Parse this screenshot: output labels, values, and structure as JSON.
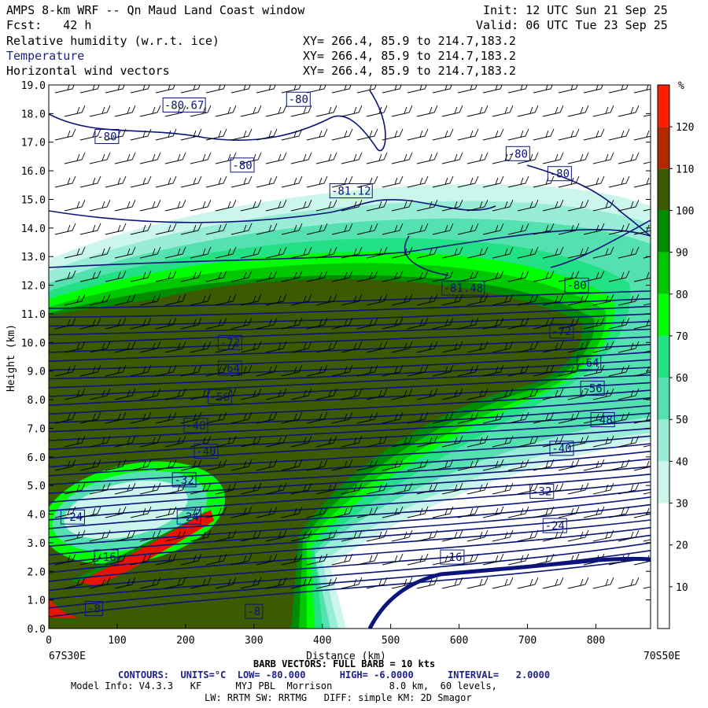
{
  "header": {
    "title": "AMPS 8-km WRF -- Qn Maud Land Coast window",
    "init": "Init: 12 UTC Sun 21 Sep 25",
    "fcst": "Fcst:   42 h",
    "valid": "Valid: 06 UTC Tue 23 Sep 25",
    "fields": [
      {
        "name": "Relative humidity (w.r.t. ice)",
        "xy": "XY= 266.4, 85.9 to 214.7,183.2"
      },
      {
        "name": "Temperature",
        "xy": "XY= 266.4, 85.9 to 214.7,183.2"
      },
      {
        "name": "Horizontal wind vectors",
        "xy": "XY= 266.4, 85.9 to 214.7,183.2"
      }
    ]
  },
  "chart_data": {
    "type": "heatmap",
    "xlabel": "Distance (km)",
    "ylabel": "Height (km)",
    "xlim": [
      0,
      880
    ],
    "ylim": [
      0,
      19
    ],
    "x_ticks": [
      "0",
      "100",
      "200",
      "300",
      "400",
      "500",
      "600",
      "700",
      "800"
    ],
    "y_ticks": [
      "0.0",
      "1.0",
      "2.0",
      "3.0",
      "4.0",
      "5.0",
      "6.0",
      "7.0",
      "8.0",
      "9.0",
      "10.0",
      "11.0",
      "12.0",
      "13.0",
      "14.0",
      "15.0",
      "16.0",
      "17.0",
      "18.0",
      "19.0"
    ],
    "left_end_label": "67S30E",
    "right_end_label": "70S50E",
    "colorbar": {
      "unit": "%",
      "levels": [
        10,
        20,
        30,
        40,
        50,
        60,
        70,
        80,
        90,
        100,
        110,
        120
      ],
      "tick_labels": [
        "10",
        "20",
        "30",
        "40",
        "50",
        "60",
        "70",
        "80",
        "90",
        "100",
        "110",
        "120"
      ],
      "colors": [
        "#ffffff",
        "#ffffff",
        "#ffffff",
        "#ccf5ec",
        "#99ecd6",
        "#55e0b0",
        "#22e084",
        "#00ff00",
        "#00c800",
        "#008c00",
        "#3c5a00",
        "#b42800",
        "#ff1e00"
      ]
    },
    "contour_labels": [
      {
        "text": "-80.67",
        "x": 198,
        "y": 18.3
      },
      {
        "text": "-80",
        "x": 365,
        "y": 18.5
      },
      {
        "text": "-80",
        "x": 85,
        "y": 17.2
      },
      {
        "text": "-80",
        "x": 283,
        "y": 16.2
      },
      {
        "text": "-81.12",
        "x": 442,
        "y": 15.3
      },
      {
        "text": "-80",
        "x": 686,
        "y": 16.6
      },
      {
        "text": "-80",
        "x": 747,
        "y": 15.9
      },
      {
        "text": "-81.48",
        "x": 606,
        "y": 11.9
      },
      {
        "text": "-80",
        "x": 772,
        "y": 12.0
      },
      {
        "text": "-72",
        "x": 265,
        "y": 10.0
      },
      {
        "text": "-72",
        "x": 750,
        "y": 10.4
      },
      {
        "text": "-64",
        "x": 265,
        "y": 9.1
      },
      {
        "text": "-64",
        "x": 790,
        "y": 9.3
      },
      {
        "text": "-56",
        "x": 250,
        "y": 8.1
      },
      {
        "text": "-56",
        "x": 795,
        "y": 8.4
      },
      {
        "text": "-48",
        "x": 215,
        "y": 7.1
      },
      {
        "text": "-48",
        "x": 810,
        "y": 7.3
      },
      {
        "text": "-40",
        "x": 230,
        "y": 6.2
      },
      {
        "text": "-40",
        "x": 750,
        "y": 6.3
      },
      {
        "text": "-32",
        "x": 198,
        "y": 5.2
      },
      {
        "text": "-32",
        "x": 721,
        "y": 4.8
      },
      {
        "text": "-24",
        "x": 35,
        "y": 3.9
      },
      {
        "text": "-24",
        "x": 205,
        "y": 3.9
      },
      {
        "text": "-24",
        "x": 740,
        "y": 3.6
      },
      {
        "text": "-16",
        "x": 84,
        "y": 2.5
      },
      {
        "text": "-16",
        "x": 590,
        "y": 2.5
      },
      {
        "text": "-8",
        "x": 66,
        "y": 0.7
      },
      {
        "text": "-8",
        "x": 300,
        "y": 0.6
      }
    ]
  },
  "footer": {
    "barb": "BARB VECTORS: FULL BARB = 10 kts",
    "contours": "CONTOURS:  UNITS=°C  LOW= -80.000      HIGH= -6.0000      INTERVAL=   2.0000",
    "model": "Model Info: V4.3.3   KF      MYJ PBL  Morrison          8.0 km,  60 levels,",
    "physics": "LW: RRTM SW: RRTMG   DIFF: simple KM: 2D Smagor"
  },
  "colors": {
    "contour": "#0a147a",
    "rh_dark": "#3c5a00",
    "rh_red": "#e81400"
  }
}
